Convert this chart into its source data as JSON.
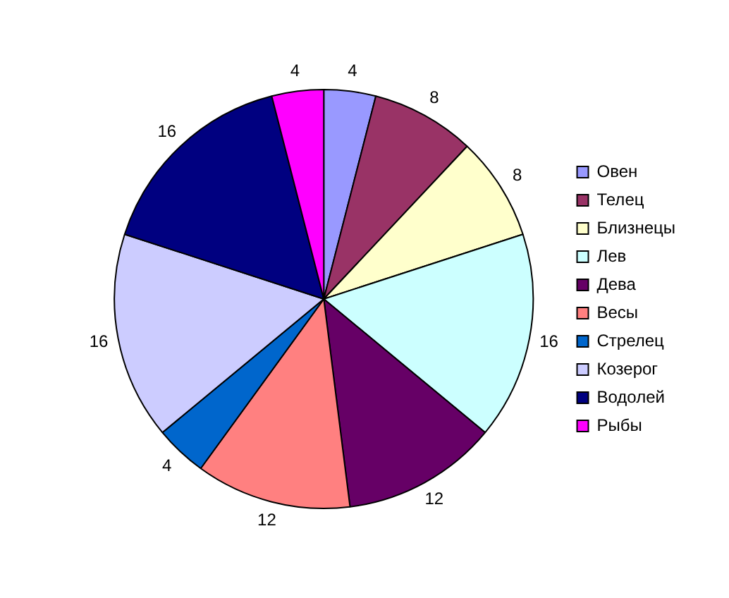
{
  "chart_data": {
    "type": "pie",
    "categories": [
      "Овен",
      "Телец",
      "Близнецы",
      "Лев",
      "Дева",
      "Весы",
      "Стрелец",
      "Козерог",
      "Водолей",
      "Рыбы"
    ],
    "values": [
      4,
      8,
      8,
      16,
      12,
      12,
      4,
      16,
      16,
      4
    ],
    "colors": [
      "#9999ff",
      "#993366",
      "#ffffcc",
      "#ccffff",
      "#660066",
      "#ff8080",
      "#0066cc",
      "#ccccff",
      "#000080",
      "#ff00ff"
    ],
    "data_labels": true,
    "legend": "right"
  }
}
